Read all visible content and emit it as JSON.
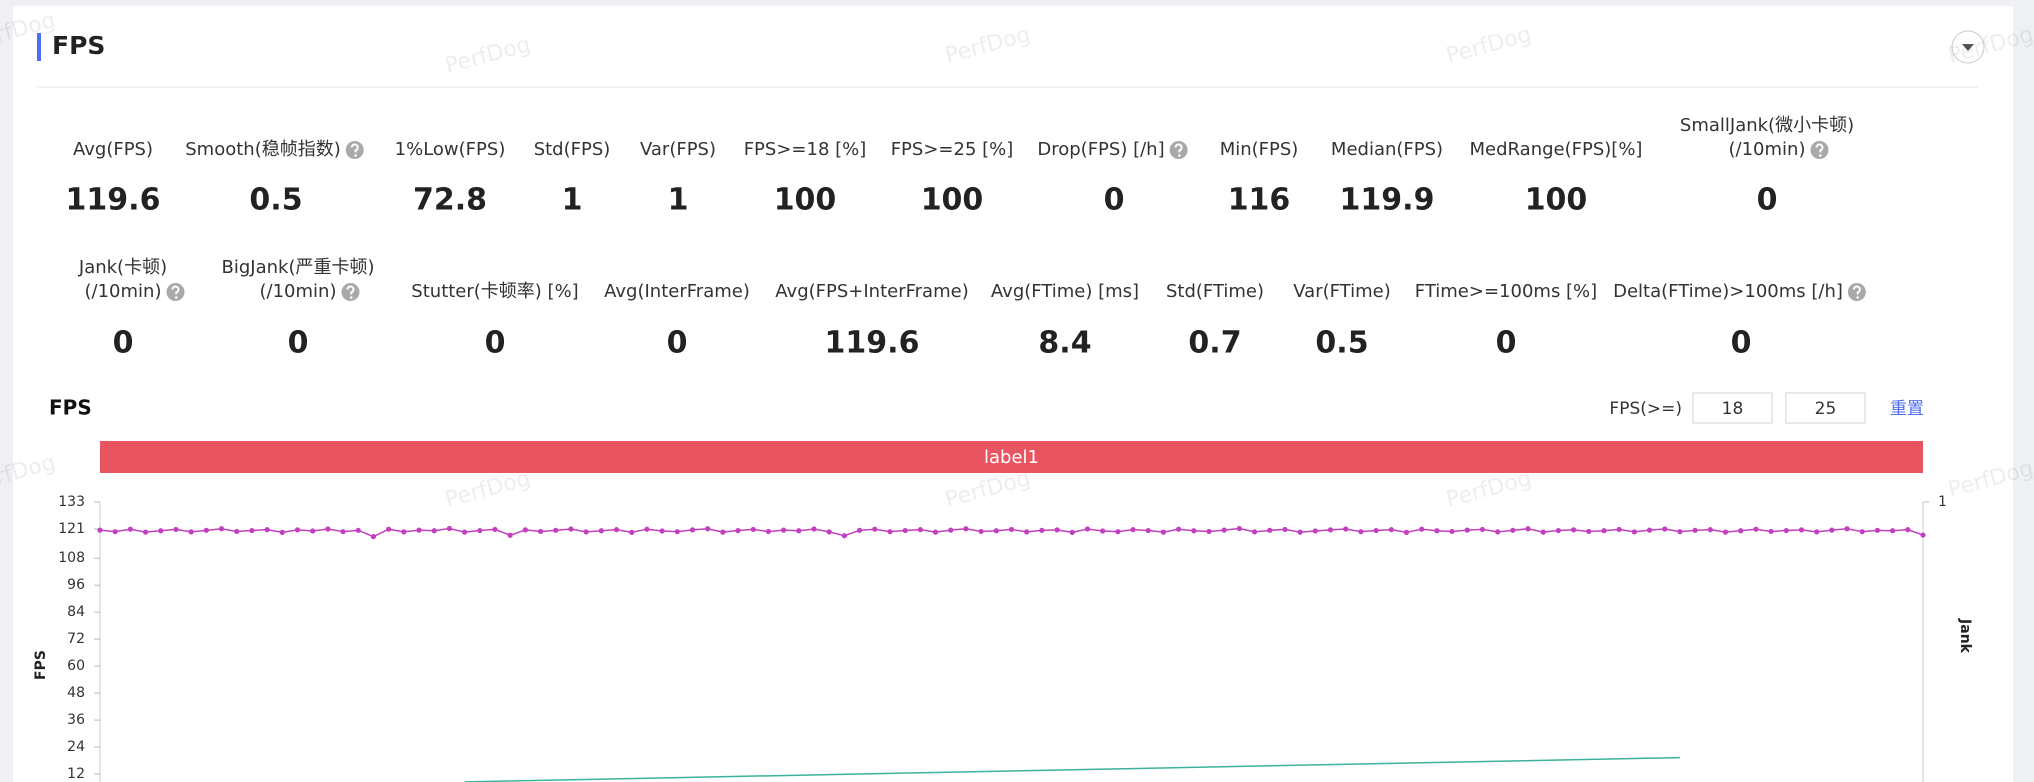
{
  "header": {
    "title": "FPS"
  },
  "watermark": "PerfDog",
  "stats": [
    [
      {
        "label": [
          "Avg(FPS)"
        ],
        "value": 119.6,
        "help": false
      },
      {
        "label": [
          "Smooth(稳帧指数)"
        ],
        "value": 0.5,
        "help": true
      },
      {
        "label": [
          "1%Low(FPS)"
        ],
        "value": 72.8,
        "help": false
      },
      {
        "label": [
          "Std(FPS)"
        ],
        "value": 1,
        "help": false
      },
      {
        "label": [
          "Var(FPS)"
        ],
        "value": 1,
        "help": false
      },
      {
        "label": [
          "FPS>=18 [%]"
        ],
        "value": 100,
        "help": false
      },
      {
        "label": [
          "FPS>=25 [%]"
        ],
        "value": 100,
        "help": false
      },
      {
        "label": [
          "Drop(FPS) [/h]"
        ],
        "value": 0,
        "help": true
      },
      {
        "label": [
          "Min(FPS)"
        ],
        "value": 116,
        "help": false
      },
      {
        "label": [
          "Median(FPS)"
        ],
        "value": 119.9,
        "help": false
      },
      {
        "label": [
          "MedRange(FPS)[%]"
        ],
        "value": 100,
        "help": false
      },
      {
        "label": [
          "SmallJank(微小卡顿)",
          "(/10min)"
        ],
        "value": 0,
        "help": true
      }
    ],
    [
      {
        "label": [
          "Jank(卡顿)",
          "(/10min)"
        ],
        "value": 0,
        "help": true
      },
      {
        "label": [
          "BigJank(严重卡顿)",
          "(/10min)"
        ],
        "value": 0,
        "help": true
      },
      {
        "label": [
          "Stutter(卡顿率) [%]"
        ],
        "value": 0,
        "help": false
      },
      {
        "label": [
          "Avg(InterFrame)"
        ],
        "value": 0,
        "help": false
      },
      {
        "label": [
          "Avg(FPS+InterFrame)"
        ],
        "value": 119.6,
        "help": false
      },
      {
        "label": [
          "Avg(FTime) [ms]"
        ],
        "value": 8.4,
        "help": false
      },
      {
        "label": [
          "Std(FTime)"
        ],
        "value": 0.7,
        "help": false
      },
      {
        "label": [
          "Var(FTime)"
        ],
        "value": 0.5,
        "help": false
      },
      {
        "label": [
          "FTime>=100ms [%]"
        ],
        "value": 0,
        "help": false
      },
      {
        "label": [
          "Delta(FTime)>100ms [/h]"
        ],
        "value": 0,
        "help": true
      }
    ]
  ],
  "filter": {
    "label": "FPS(>=)",
    "inputs": [
      18,
      25
    ],
    "reset": "重置"
  },
  "chart_data": {
    "type": "line",
    "title": "FPS",
    "band_label": "label1",
    "band_color": "#e85561",
    "y_label": "FPS",
    "y2_label": "Jank",
    "xlim": [
      0,
      120
    ],
    "ylim": [
      0,
      133
    ],
    "yticks": [
      12,
      24,
      36,
      48,
      60,
      72,
      84,
      96,
      108,
      121,
      133
    ],
    "y2lim": [
      0,
      1
    ],
    "y2ticks": [
      1
    ],
    "series": [
      {
        "color": "#c23fbf",
        "marker": true,
        "values": [
          120.5,
          119.8,
          120.9,
          119.6,
          120.2,
          120.8,
          119.7,
          120.4,
          121.1,
          119.9,
          120.3,
          120.7,
          119.5,
          120.6,
          120.1,
          121.0,
          119.8,
          120.4,
          117.6,
          120.9,
          119.7,
          120.5,
          120.2,
          121.2,
          119.6,
          120.3,
          120.8,
          118.2,
          120.6,
          119.9,
          120.4,
          121.0,
          119.7,
          120.2,
          120.7,
          119.5,
          120.9,
          120.1,
          119.8,
          120.6,
          121.1,
          119.6,
          120.3,
          120.8,
          119.9,
          120.5,
          120.2,
          121.0,
          119.7,
          118.0,
          120.4,
          120.9,
          119.8,
          120.3,
          120.7,
          119.6,
          120.5,
          121.1,
          119.9,
          120.2,
          120.8,
          119.7,
          120.4,
          120.6,
          119.5,
          121.0,
          120.1,
          119.8,
          120.7,
          120.3,
          119.6,
          120.9,
          120.2,
          119.9,
          120.5,
          121.2,
          119.7,
          120.4,
          120.8,
          119.6,
          120.1,
          120.6,
          121.0,
          119.8,
          120.3,
          120.7,
          119.5,
          120.9,
          120.2,
          119.9,
          120.5,
          120.8,
          119.7,
          120.4,
          121.1,
          119.6,
          120.3,
          120.6,
          119.9,
          120.2,
          120.8,
          119.7,
          120.5,
          121.0,
          119.8,
          120.4,
          120.7,
          119.6,
          120.2,
          120.9,
          119.9,
          120.3,
          120.6,
          119.7,
          120.5,
          121.1,
          119.8,
          120.4,
          120.2,
          120.7,
          118.3
        ]
      },
      {
        "color": "#3bb39a",
        "marker": false,
        "x": [
          24,
          104
        ],
        "values": [
          8.5,
          19.3
        ]
      }
    ]
  }
}
